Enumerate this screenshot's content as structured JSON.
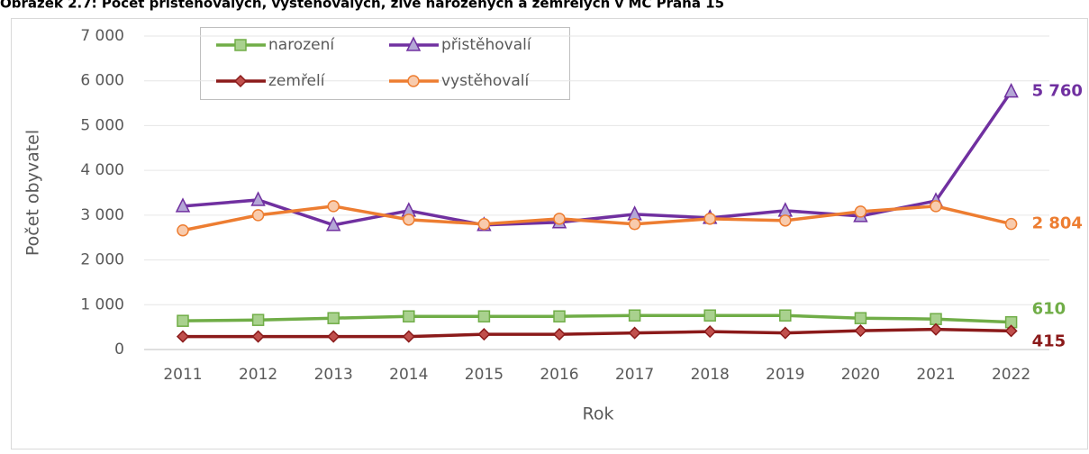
{
  "chart_data": {
    "type": "line",
    "title": "Obrázek 2.7: Počet přistěhovalých, vystěhovalých, živě narozených a zemřelých v MČ Praha 15",
    "xlabel": "Rok",
    "ylabel": "Počet obyvatel",
    "categories": [
      "2011",
      "2012",
      "2013",
      "2014",
      "2015",
      "2016",
      "2017",
      "2018",
      "2019",
      "2020",
      "2021",
      "2022"
    ],
    "series": [
      {
        "name": "narození",
        "color": "#70ad47",
        "marker": "square",
        "values": [
          640,
          660,
          700,
          740,
          740,
          740,
          760,
          760,
          760,
          700,
          680,
          610
        ],
        "value_labels": [
          null,
          null,
          null,
          null,
          null,
          null,
          null,
          null,
          null,
          null,
          null,
          "610"
        ]
      },
      {
        "name": "přistěhovalí",
        "color": "#7030a0",
        "marker": "triangle",
        "values": [
          3200,
          3340,
          2780,
          3100,
          2780,
          2840,
          3020,
          2940,
          3100,
          2980,
          3320,
          5760
        ],
        "value_labels": [
          null,
          null,
          null,
          null,
          null,
          null,
          null,
          null,
          null,
          null,
          null,
          "5 760"
        ]
      },
      {
        "name": "zemřelí",
        "color": "#8b1a1a",
        "marker": "diamond",
        "values": [
          290,
          290,
          290,
          290,
          340,
          340,
          370,
          400,
          370,
          420,
          450,
          415
        ],
        "value_labels": [
          null,
          null,
          null,
          null,
          null,
          null,
          null,
          null,
          null,
          null,
          null,
          "415"
        ]
      },
      {
        "name": "vystěhovalí",
        "color": "#ed7d31",
        "marker": "circle",
        "values": [
          2660,
          3000,
          3200,
          2900,
          2800,
          2920,
          2800,
          2920,
          2880,
          3080,
          3200,
          2804
        ],
        "value_labels": [
          null,
          null,
          null,
          null,
          null,
          null,
          null,
          null,
          null,
          null,
          null,
          "2 804"
        ]
      }
    ],
    "ylim": [
      0,
      7000
    ],
    "yticks": [
      0,
      {
        "value": 1000,
        "label": "1 000"
      },
      {
        "value": 2000,
        "label": "2 000"
      },
      {
        "value": 3000,
        "label": "3 000"
      },
      {
        "value": 4000,
        "label": "4 000"
      },
      {
        "value": 5000,
        "label": "5 000"
      },
      {
        "value": 6000,
        "label": "6 000"
      },
      {
        "value": 7000,
        "label": "7 000"
      }
    ]
  }
}
